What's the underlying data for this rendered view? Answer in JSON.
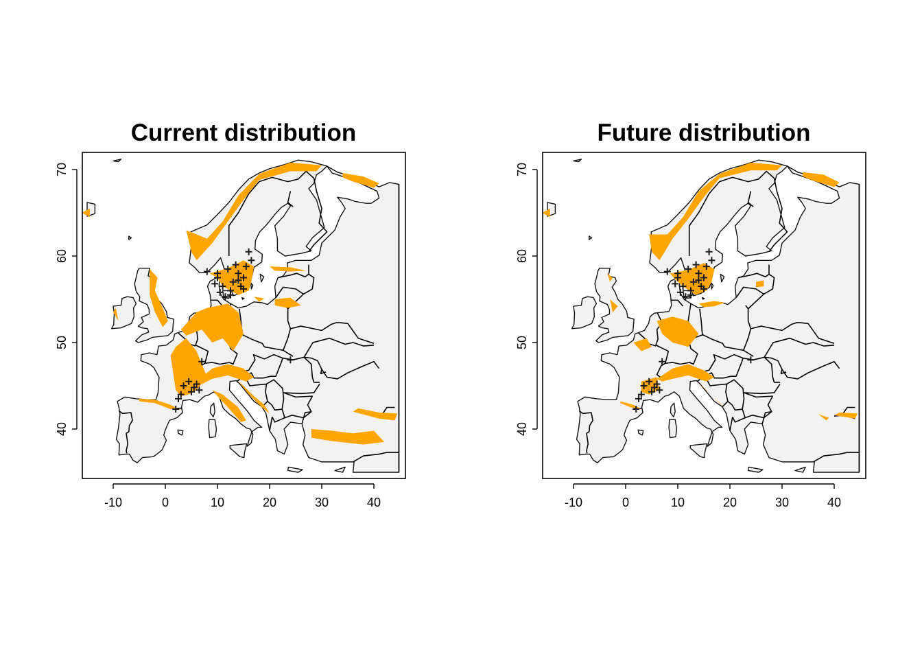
{
  "colors": {
    "land": "#f2f2f2",
    "suitable": "#ffa500",
    "border": "#000000",
    "occurrence": "#1a1a1a",
    "background": "#ffffff"
  },
  "axes": {
    "xlim": [
      -15,
      45
    ],
    "ylim": [
      34,
      72
    ],
    "xticks": [
      -10,
      0,
      10,
      20,
      30,
      40
    ],
    "yticks": [
      40,
      50,
      60,
      70
    ],
    "xtick_labels": [
      "-10",
      "0",
      "10",
      "20",
      "30",
      "40"
    ],
    "ytick_labels": [
      "40",
      "50",
      "60",
      "70"
    ]
  },
  "occurrence_symbol": "+",
  "occurrences": [
    [
      16,
      60.5
    ],
    [
      13.5,
      59
    ],
    [
      12,
      58.5
    ],
    [
      14,
      58
    ],
    [
      15,
      57.5
    ],
    [
      13,
      57
    ],
    [
      10,
      57.5
    ],
    [
      11,
      56.5
    ],
    [
      12.5,
      56
    ],
    [
      14.5,
      56.5
    ],
    [
      15.5,
      58.8
    ],
    [
      16.5,
      59.5
    ],
    [
      10.5,
      55.8
    ],
    [
      11.5,
      55.3
    ],
    [
      12.5,
      55.5
    ],
    [
      14,
      57.2
    ],
    [
      15,
      56.2
    ],
    [
      9.5,
      56.8
    ],
    [
      10,
      58
    ],
    [
      8,
      58.2
    ],
    [
      24,
      48
    ],
    [
      7,
      47.8
    ],
    [
      3.5,
      45
    ],
    [
      4.5,
      45.5
    ],
    [
      5.5,
      44.8
    ],
    [
      6,
      45.2
    ],
    [
      6.5,
      44.5
    ],
    [
      5,
      44.3
    ],
    [
      3,
      44
    ],
    [
      2.5,
      43.5
    ],
    [
      2,
      42.3
    ]
  ],
  "panels": [
    {
      "id": "current",
      "title": "Current distribution",
      "suitable_areas": [
        [
          [
            4,
            63
          ],
          [
            8,
            62
          ],
          [
            11,
            64
          ],
          [
            14,
            67
          ],
          [
            18,
            69.5
          ],
          [
            24,
            70.8
          ],
          [
            30,
            70.5
          ],
          [
            29,
            69.8
          ],
          [
            24,
            69.8
          ],
          [
            18,
            68.8
          ],
          [
            15,
            66.5
          ],
          [
            12,
            64
          ],
          [
            9,
            61.5
          ],
          [
            6,
            59.5
          ],
          [
            5,
            60.5
          ]
        ],
        [
          [
            34,
            69.6
          ],
          [
            38,
            69.2
          ],
          [
            41,
            68.4
          ],
          [
            40,
            67.9
          ],
          [
            36,
            68.6
          ],
          [
            34,
            69.1
          ]
        ],
        [
          [
            8.5,
            58
          ],
          [
            12,
            58.6
          ],
          [
            15,
            59.5
          ],
          [
            17,
            58.8
          ],
          [
            16.5,
            57
          ],
          [
            16,
            56
          ],
          [
            14,
            55.5
          ],
          [
            12.5,
            56
          ],
          [
            11,
            56.5
          ],
          [
            10,
            57.5
          ]
        ],
        [
          [
            -3,
            58.5
          ],
          [
            -1.5,
            57.5
          ],
          [
            -2,
            56
          ],
          [
            -0.5,
            54
          ],
          [
            0.5,
            52.5
          ],
          [
            -0.5,
            51.8
          ],
          [
            -2,
            53.5
          ],
          [
            -3,
            55.5
          ]
        ],
        [
          [
            -16,
            65
          ],
          [
            -14.5,
            64.5
          ],
          [
            -14.5,
            65.5
          ]
        ],
        [
          [
            3,
            51.5
          ],
          [
            6,
            53.5
          ],
          [
            8,
            54
          ],
          [
            12,
            54.5
          ],
          [
            14,
            53.5
          ],
          [
            15,
            51
          ],
          [
            13,
            49
          ],
          [
            11,
            50.5
          ],
          [
            9,
            50
          ],
          [
            7,
            51.5
          ],
          [
            4,
            50.8
          ]
        ],
        [
          [
            2,
            49.5
          ],
          [
            4,
            50.5
          ],
          [
            6,
            49
          ],
          [
            7,
            47.5
          ],
          [
            8,
            46
          ],
          [
            6,
            44.5
          ],
          [
            4.5,
            44
          ],
          [
            3,
            43.8
          ],
          [
            2,
            44.5
          ],
          [
            1.5,
            46.5
          ],
          [
            1,
            48.5
          ]
        ],
        [
          [
            6,
            45.5
          ],
          [
            9,
            47
          ],
          [
            12,
            47.5
          ],
          [
            15,
            47
          ],
          [
            17,
            46
          ],
          [
            15.5,
            45.5
          ],
          [
            12,
            46.2
          ],
          [
            9,
            45.8
          ],
          [
            7,
            45.2
          ]
        ],
        [
          [
            14,
            45.5
          ],
          [
            16,
            44
          ],
          [
            18.5,
            42.5
          ],
          [
            20,
            41.8
          ],
          [
            19,
            42.8
          ],
          [
            17,
            43.8
          ],
          [
            15,
            45
          ]
        ],
        [
          [
            9,
            44.5
          ],
          [
            11,
            44
          ],
          [
            14,
            42.5
          ],
          [
            15.5,
            41
          ],
          [
            14.5,
            40.8
          ],
          [
            12,
            42.5
          ],
          [
            10,
            43.8
          ]
        ],
        [
          [
            -5,
            43.5
          ],
          [
            -2,
            43.4
          ],
          [
            1,
            42.8
          ],
          [
            3,
            42.2
          ],
          [
            1,
            42.3
          ],
          [
            -2,
            43
          ],
          [
            -5,
            43.2
          ]
        ],
        [
          [
            36,
            42
          ],
          [
            41,
            41.2
          ],
          [
            44,
            41
          ],
          [
            44.5,
            41.8
          ],
          [
            41,
            41.9
          ],
          [
            37,
            42.4
          ]
        ],
        [
          [
            28,
            40
          ],
          [
            32,
            39.8
          ],
          [
            36,
            39.5
          ],
          [
            40,
            39.8
          ],
          [
            42,
            38.5
          ],
          [
            38,
            38.2
          ],
          [
            32,
            38.6
          ],
          [
            28,
            39
          ]
        ],
        [
          [
            21,
            55
          ],
          [
            24,
            55.2
          ],
          [
            26,
            54.3
          ],
          [
            23.5,
            54
          ],
          [
            21,
            54.3
          ]
        ],
        [
          [
            17,
            55.3
          ],
          [
            19,
            55.1
          ],
          [
            18,
            54.7
          ]
        ],
        [
          [
            20,
            58.8
          ],
          [
            24,
            58.7
          ],
          [
            27,
            58.3
          ],
          [
            24,
            58.2
          ],
          [
            21,
            58.3
          ]
        ],
        [
          [
            -10,
            53.5
          ],
          [
            -9,
            52.5
          ],
          [
            -9.5,
            54
          ]
        ]
      ]
    },
    {
      "id": "future",
      "title": "Future distribution",
      "suitable_areas": [
        [
          [
            4.5,
            62.5
          ],
          [
            8,
            62.5
          ],
          [
            11,
            64.5
          ],
          [
            14,
            67.5
          ],
          [
            18,
            69.5
          ],
          [
            24,
            70.8
          ],
          [
            30,
            70.5
          ],
          [
            29,
            69.9
          ],
          [
            24,
            69.9
          ],
          [
            18,
            69
          ],
          [
            15,
            66.8
          ],
          [
            12,
            64.3
          ],
          [
            9,
            62
          ],
          [
            6.5,
            59.5
          ],
          [
            5,
            60.5
          ]
        ],
        [
          [
            34,
            69.7
          ],
          [
            38,
            69.4
          ],
          [
            41,
            68.5
          ],
          [
            40,
            68
          ],
          [
            36,
            68.7
          ],
          [
            34,
            69.2
          ]
        ],
        [
          [
            8.5,
            58
          ],
          [
            12,
            58.4
          ],
          [
            15,
            59.2
          ],
          [
            17,
            58.5
          ],
          [
            16.5,
            57
          ],
          [
            15.5,
            56
          ],
          [
            13.5,
            55.5
          ],
          [
            11,
            56.5
          ],
          [
            9.5,
            57.3
          ]
        ],
        [
          [
            -16,
            65
          ],
          [
            -14.5,
            64.5
          ],
          [
            -14.5,
            65.5
          ]
        ],
        [
          [
            14,
            54.5
          ],
          [
            17,
            54.8
          ],
          [
            19,
            54.6
          ],
          [
            17,
            54.2
          ],
          [
            15,
            54.1
          ]
        ],
        [
          [
            25,
            57
          ],
          [
            26.5,
            57.2
          ],
          [
            26.5,
            56.5
          ],
          [
            25,
            56.4
          ]
        ],
        [
          [
            6,
            52.5
          ],
          [
            9,
            53
          ],
          [
            12,
            52.5
          ],
          [
            14,
            51
          ],
          [
            12,
            49.5
          ],
          [
            9,
            50
          ],
          [
            7,
            51
          ]
        ],
        [
          [
            1.5,
            50
          ],
          [
            4,
            50.5
          ],
          [
            5,
            49.5
          ],
          [
            3,
            49
          ]
        ],
        [
          [
            6,
            45.8
          ],
          [
            9,
            47
          ],
          [
            12,
            47.5
          ],
          [
            15,
            46.8
          ],
          [
            17,
            46
          ],
          [
            15.5,
            45.5
          ],
          [
            12,
            46.2
          ],
          [
            9,
            45.8
          ],
          [
            7,
            45.5
          ]
        ],
        [
          [
            3,
            45.5
          ],
          [
            6,
            46
          ],
          [
            6.5,
            44.5
          ],
          [
            4.5,
            44
          ],
          [
            3,
            44.3
          ]
        ],
        [
          [
            14,
            45.3
          ],
          [
            16,
            44.2
          ],
          [
            18,
            43
          ],
          [
            19,
            42.5
          ],
          [
            17,
            43.6
          ],
          [
            15,
            44.8
          ]
        ],
        [
          [
            -1,
            43.2
          ],
          [
            1.5,
            42.8
          ],
          [
            3,
            42.3
          ],
          [
            1,
            42.5
          ],
          [
            -1,
            43
          ]
        ],
        [
          [
            40,
            41.6
          ],
          [
            44,
            41.2
          ],
          [
            44.5,
            41.8
          ],
          [
            41,
            41.9
          ]
        ],
        [
          [
            37,
            41.7
          ],
          [
            39,
            41.3
          ],
          [
            38.5,
            41
          ]
        ],
        [
          [
            -3,
            55
          ],
          [
            -1.5,
            54.2
          ],
          [
            -2.5,
            53.5
          ]
        ],
        [
          [
            -3.5,
            58
          ],
          [
            -2.5,
            57.5
          ],
          [
            -3,
            57
          ]
        ]
      ]
    }
  ]
}
